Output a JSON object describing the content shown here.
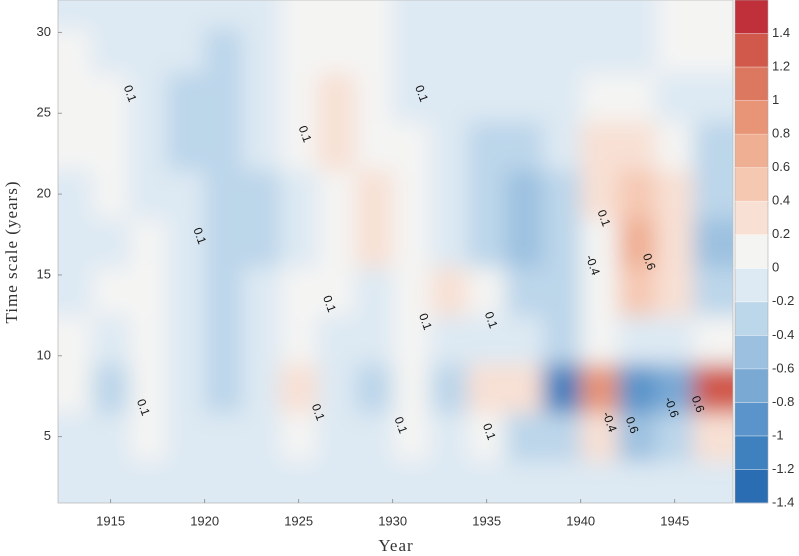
{
  "chart_data": {
    "type": "contour",
    "xlabel": "Year",
    "ylabel": "Time scale (years)",
    "xlim": [
      1912.2,
      1948.1
    ],
    "ylim": [
      0.9,
      32
    ],
    "xticks": [
      1915,
      1920,
      1925,
      1930,
      1935,
      1940,
      1945
    ],
    "yticks": [
      5,
      10,
      15,
      20,
      25,
      30
    ],
    "x": [
      1913,
      1915,
      1917,
      1919,
      1921,
      1923,
      1925,
      1927,
      1929,
      1931,
      1933,
      1935,
      1937,
      1939,
      1941,
      1943,
      1945,
      1947
    ],
    "y": [
      2,
      5,
      8,
      11,
      14,
      17,
      20,
      23,
      26,
      29,
      31.5
    ],
    "z": [
      [
        0,
        -0.05,
        0,
        -0.05,
        -0.05,
        0,
        0,
        0,
        -0.05,
        0,
        -0.05,
        0,
        -0.1,
        0,
        0,
        -0.1,
        0,
        0
      ],
      [
        0,
        -0.1,
        0.05,
        -0.05,
        -0.1,
        0,
        0.05,
        0,
        -0.1,
        0.1,
        -0.1,
        0.1,
        -0.2,
        -0.3,
        0.4,
        -0.5,
        -0.3,
        0.3
      ],
      [
        0.05,
        -0.2,
        0.15,
        -0.05,
        -0.3,
        -0.05,
        0.25,
        -0.05,
        -0.2,
        0.2,
        -0.2,
        0.3,
        0.3,
        -1.0,
        0.9,
        -0.9,
        -0.6,
        1.3
      ],
      [
        0.05,
        -0.1,
        0.1,
        -0.1,
        -0.2,
        0,
        0.15,
        0,
        -0.1,
        0.05,
        0,
        -0.05,
        -0.1,
        -0.2,
        0.2,
        -0.1,
        -0.1,
        0.1
      ],
      [
        -0.1,
        0.05,
        0.15,
        -0.1,
        -0.2,
        -0.1,
        0.1,
        0.05,
        -0.1,
        0.1,
        0.25,
        0.1,
        -0.3,
        -0.3,
        0.1,
        0.5,
        0.3,
        -0.2
      ],
      [
        -0.1,
        0,
        0.1,
        -0.1,
        -0.2,
        -0.2,
        -0.1,
        0.1,
        0.25,
        0.2,
        0,
        -0.2,
        -0.45,
        -0.3,
        0.2,
        0.65,
        0.4,
        -0.4
      ],
      [
        0,
        0.05,
        -0.05,
        -0.15,
        -0.2,
        -0.2,
        -0.05,
        0.2,
        0.25,
        0.1,
        -0.05,
        -0.3,
        -0.45,
        -0.2,
        0.3,
        0.55,
        0.3,
        -0.3
      ],
      [
        0.15,
        0.05,
        -0.05,
        -0.2,
        -0.3,
        -0.15,
        0.1,
        0.3,
        0.2,
        0.05,
        -0.1,
        -0.2,
        -0.2,
        0,
        0.35,
        0.4,
        0.1,
        -0.2
      ],
      [
        0.2,
        0.1,
        -0.1,
        -0.2,
        -0.3,
        -0.1,
        0.1,
        0.25,
        0.15,
        -0.05,
        -0.1,
        -0.1,
        -0.05,
        0,
        0.1,
        0.1,
        0,
        -0.1
      ],
      [
        0.05,
        0,
        -0.1,
        -0.15,
        -0.2,
        -0.05,
        0.05,
        0.15,
        0.1,
        0,
        -0.1,
        -0.1,
        -0.05,
        0,
        0,
        0,
        0.05,
        0.1
      ],
      [
        -0.05,
        0,
        -0.1,
        -0.1,
        -0.15,
        -0.05,
        0.1,
        0.2,
        0.1,
        0,
        -0.05,
        -0.05,
        0,
        0,
        0,
        0,
        0.05,
        0.1
      ]
    ],
    "clim": [
      -1.4,
      1.6
    ],
    "cticks": [
      -1.4,
      -1.2,
      -1,
      -0.8,
      -0.6,
      -0.4,
      -0.2,
      0,
      0.2,
      0.4,
      0.6,
      0.8,
      1,
      1.2,
      1.4
    ],
    "colors": [
      "#2a6db3",
      "#3f80bf",
      "#5a94ca",
      "#7aa9d4",
      "#9cc1e0",
      "#bcd6ea",
      "#dde9f3",
      "#f4f4f3",
      "#f8e0d4",
      "#f5c8b2",
      "#efaf93",
      "#e79477",
      "#dc785f",
      "#d0594b",
      "#c0303a"
    ],
    "contour_labels": [
      {
        "x": 1916.0,
        "y": 26.2,
        "value": 0.1
      },
      {
        "x": 1925.3,
        "y": 23.7,
        "value": 0.1
      },
      {
        "x": 1931.5,
        "y": 26.2,
        "value": 0.1
      },
      {
        "x": 1919.7,
        "y": 17.4,
        "value": 0.1
      },
      {
        "x": 1941.2,
        "y": 18.5,
        "value": 0.1
      },
      {
        "x": 1940.6,
        "y": 15.6,
        "value": -0.4
      },
      {
        "x": 1943.6,
        "y": 15.8,
        "value": 0.6
      },
      {
        "x": 1926.6,
        "y": 13.2,
        "value": 0.1
      },
      {
        "x": 1931.7,
        "y": 12.1,
        "value": 0.1
      },
      {
        "x": 1935.2,
        "y": 12.2,
        "value": 0.1
      },
      {
        "x": 1916.7,
        "y": 6.8,
        "value": 0.1
      },
      {
        "x": 1926.0,
        "y": 6.5,
        "value": 0.1
      },
      {
        "x": 1930.4,
        "y": 5.7,
        "value": 0.1
      },
      {
        "x": 1935.1,
        "y": 5.3,
        "value": 0.1
      },
      {
        "x": 1941.5,
        "y": 5.9,
        "value": -0.4
      },
      {
        "x": 1942.7,
        "y": 5.7,
        "value": 0.6
      },
      {
        "x": 1944.8,
        "y": 6.8,
        "value": -0.6
      },
      {
        "x": 1946.2,
        "y": 7.0,
        "value": 0.6
      }
    ]
  }
}
